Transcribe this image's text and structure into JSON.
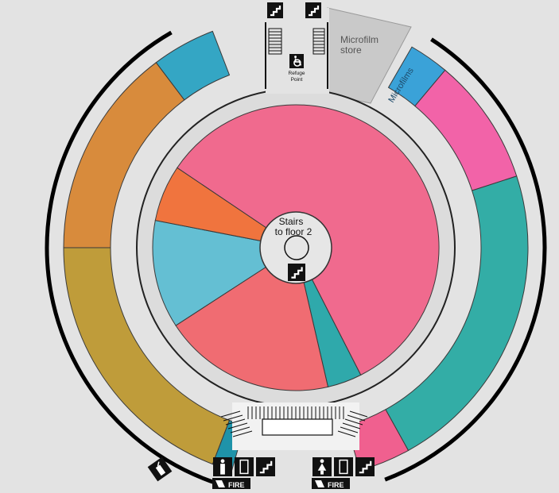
{
  "labels": {
    "center_line1": "Stairs",
    "center_line2": "to floor 2",
    "microfilm_store_line1": "Microfilm",
    "microfilm_store_line2": "store",
    "microfilms": "Microfilms",
    "refuge_line1": "Refuge",
    "refuge_line2": "Point",
    "fire_left": "FIRE",
    "fire_right": "FIRE"
  },
  "colors": {
    "background": "#e3e3e3",
    "corridor": "#dcdcdc",
    "wall": "#000000",
    "inner_coral": "#f06a8e",
    "inner_orange": "#f0743e",
    "inner_skyblue": "#64bfd3",
    "inner_salmon": "#f06c72",
    "inner_teal": "#2fa9ab",
    "outer_blue": "#34a6c4",
    "outer_orange": "#d88b3c",
    "outer_mustard": "#bf9c3a",
    "outer_teal_bottom": "#1f93a9",
    "outer_pink": "#f263a8",
    "outer_teal": "#33ada6",
    "outer_pink_bottom": "#f0608f",
    "microfilms_blue": "#3aa2d8",
    "microfilm_store_grey": "#c9c9c9"
  },
  "icons": [
    "stairs-icon",
    "wheelchair-icon",
    "toilet-icon",
    "lift-icon",
    "fire-exit-icon",
    "fire-extinguisher-icon"
  ]
}
